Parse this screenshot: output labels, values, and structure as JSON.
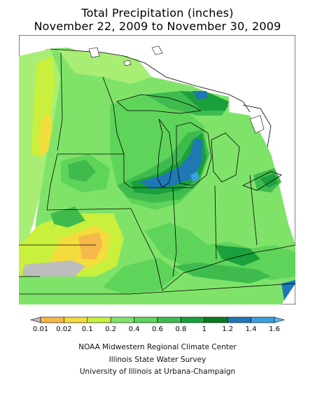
{
  "title": {
    "line1": "Total Precipitation (inches)",
    "line2": "November 22, 2009 to November 30, 2009"
  },
  "legend": {
    "labels": [
      "0.01",
      "0.02",
      "0.1",
      "0.2",
      "0.4",
      "0.6",
      "0.8",
      "1",
      "1.2",
      "1.4",
      "1.6"
    ],
    "colors": [
      "#bdbdbd",
      "#f7b84b",
      "#f2dd3c",
      "#c8f03c",
      "#7fe36a",
      "#5fd45a",
      "#3fbb4e",
      "#1aa03c",
      "#0a7a22",
      "#1f78b4",
      "#3aa0e0",
      "#56b8f0"
    ]
  },
  "credits": {
    "line1": "NOAA Midwestern Regional Climate Center",
    "line2": "Illinois State Water Survey",
    "line3": "University of Illinois at Urbana-Champaign"
  }
}
